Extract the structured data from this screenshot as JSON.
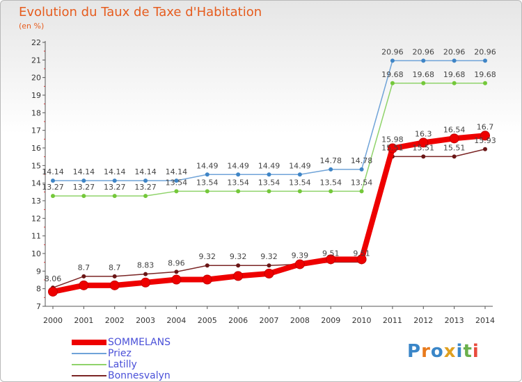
{
  "title": "Evolution du Taux de Taxe d'Habitation",
  "subtitle": "(en %)",
  "logo": {
    "text": "Proxiti",
    "colors": [
      "#3a86c8",
      "#e87a1c",
      "#3a86c8",
      "#e0a020",
      "#3a86c8",
      "#6ab04c",
      "#e84a3c"
    ]
  },
  "chart_data": {
    "type": "line",
    "title": "Evolution du Taux de Taxe d'Habitation",
    "ylabel": "(en %)",
    "x": [
      "2000",
      "2001",
      "2002",
      "2003",
      "2004",
      "2005",
      "2006",
      "2007",
      "2008",
      "2009",
      "2010",
      "2011",
      "2012",
      "2013",
      "2014"
    ],
    "ylim": [
      7,
      22
    ],
    "yticks": [
      7,
      8,
      9,
      10,
      11,
      12,
      13,
      14,
      15,
      16,
      17,
      18,
      19,
      20,
      21,
      22
    ],
    "grid": false,
    "legend_position": "bottom-left",
    "series": [
      {
        "name": "SOMMELANS",
        "color": "#ee0000",
        "values": [
          7.83,
          8.19,
          8.19,
          8.35,
          8.52,
          8.52,
          8.72,
          8.86,
          9.39,
          9.67,
          9.67,
          15.98,
          16.3,
          16.54,
          16.7
        ],
        "labels": [
          "",
          "",
          "",
          "",
          "",
          "",
          "",
          "",
          "",
          "",
          "",
          "15.98",
          "16.3",
          "16.54",
          "16.7"
        ]
      },
      {
        "name": "Priez",
        "color": "#6fa3d8",
        "values": [
          14.14,
          14.14,
          14.14,
          14.14,
          14.14,
          14.49,
          14.49,
          14.49,
          14.49,
          14.78,
          14.78,
          20.96,
          20.96,
          20.96,
          20.96
        ],
        "labels": [
          "14.14",
          "14.14",
          "14.14",
          "14.14",
          "14.14",
          "14.49",
          "14.49",
          "14.49",
          "14.49",
          "14.78",
          "14.78",
          "20.96",
          "20.96",
          "20.96",
          "20.96"
        ]
      },
      {
        "name": "Latilly",
        "color": "#8fd36a",
        "values": [
          13.27,
          13.27,
          13.27,
          13.27,
          13.54,
          13.54,
          13.54,
          13.54,
          13.54,
          13.54,
          13.54,
          19.68,
          19.68,
          19.68,
          19.68
        ],
        "labels": [
          "13.27",
          "13.27",
          "13.27",
          "13.27",
          "13.54",
          "13.54",
          "13.54",
          "13.54",
          "13.54",
          "13.54",
          "13.54",
          "19.68",
          "19.68",
          "19.68",
          "19.68"
        ]
      },
      {
        "name": "Bonnesvalyn",
        "color": "#7a2424",
        "values": [
          8.06,
          8.7,
          8.7,
          8.83,
          8.96,
          9.32,
          9.32,
          9.32,
          9.39,
          9.51,
          9.51,
          15.51,
          15.51,
          15.51,
          15.93
        ],
        "labels": [
          "8.06",
          "8.7",
          "8.7",
          "8.83",
          "8.96",
          "9.32",
          "9.32",
          "9.32",
          "9.39",
          "9.51",
          "9.51",
          "15.51",
          "15.51",
          "15.51",
          "15.93"
        ]
      }
    ]
  }
}
